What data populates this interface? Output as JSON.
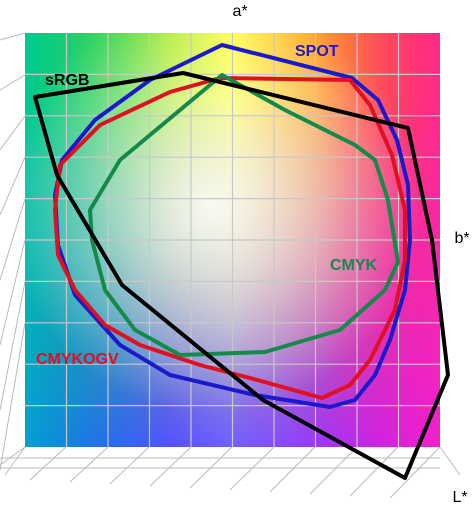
{
  "axes": {
    "a": "a*",
    "b": "b*",
    "L": "L*"
  },
  "gamuts": [
    {
      "label": "sRGB"
    },
    {
      "label": "SPOT"
    },
    {
      "label": "CMYK"
    },
    {
      "label": "CMYKOGV"
    }
  ]
}
